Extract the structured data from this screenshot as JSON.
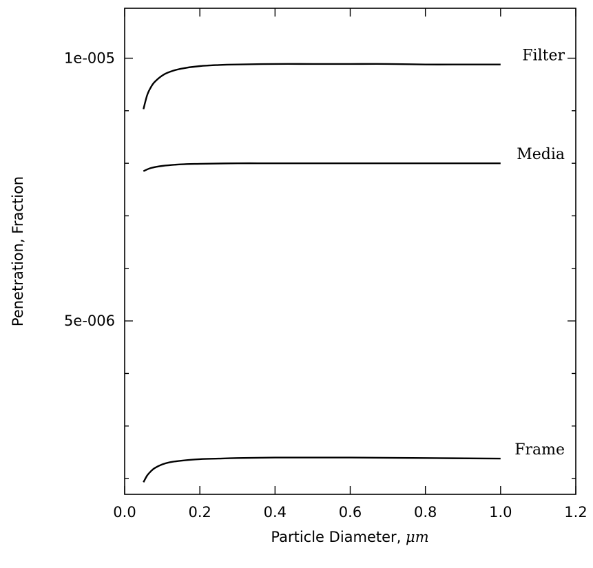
{
  "chart_data": {
    "type": "line",
    "title": "",
    "xlabel": "Particle Diameter, ",
    "xlabel_unit": "μm",
    "ylabel": "Penetration, Fraction",
    "xlim": [
      0.0,
      1.2
    ],
    "ylim": [
      1.7e-06,
      1.095e-05
    ],
    "x_ticks": [
      0.0,
      0.2,
      0.4,
      0.6,
      0.8,
      1.0,
      1.2
    ],
    "x_tick_labels": [
      "0.0",
      "0.2",
      "0.4",
      "0.6",
      "0.8",
      "1.0",
      "1.2"
    ],
    "y_ticks": [
      5e-06,
      1e-05
    ],
    "y_tick_labels": [
      "5e-006",
      "1e-005"
    ],
    "y_minor_ticks": [
      2e-06,
      3e-06,
      4e-06,
      6e-06,
      7e-06,
      8e-06,
      9e-06
    ],
    "grid": false,
    "legend": "none",
    "series": [
      {
        "name": "Filter",
        "x": [
          0.05,
          0.06,
          0.07,
          0.08,
          0.1,
          0.12,
          0.15,
          0.2,
          0.25,
          0.3,
          0.4,
          0.5,
          0.6,
          0.7,
          0.8,
          0.9,
          1.0
        ],
        "y": [
          9.03e-06,
          9.3e-06,
          9.45e-06,
          9.55e-06,
          9.67e-06,
          9.74e-06,
          9.8e-06,
          9.85e-06,
          9.87e-06,
          9.88e-06,
          9.89e-06,
          9.89e-06,
          9.89e-06,
          9.89e-06,
          9.88e-06,
          9.88e-06,
          9.88e-06
        ]
      },
      {
        "name": "Media",
        "x": [
          0.05,
          0.07,
          0.1,
          0.15,
          0.2,
          0.3,
          0.4,
          0.6,
          0.8,
          1.0
        ],
        "y": [
          7.85e-06,
          7.91e-06,
          7.95e-06,
          7.98e-06,
          7.99e-06,
          8e-06,
          8e-06,
          8e-06,
          8e-06,
          8e-06
        ]
      },
      {
        "name": "Frame",
        "x": [
          0.05,
          0.06,
          0.07,
          0.08,
          0.1,
          0.12,
          0.15,
          0.2,
          0.25,
          0.3,
          0.4,
          0.5,
          0.6,
          0.8,
          1.0
        ],
        "y": [
          1.93e-06,
          2.06e-06,
          2.14e-06,
          2.2e-06,
          2.27e-06,
          2.31e-06,
          2.34e-06,
          2.37e-06,
          2.38e-06,
          2.39e-06,
          2.4e-06,
          2.4e-06,
          2.4e-06,
          2.39e-06,
          2.38e-06
        ]
      }
    ]
  }
}
